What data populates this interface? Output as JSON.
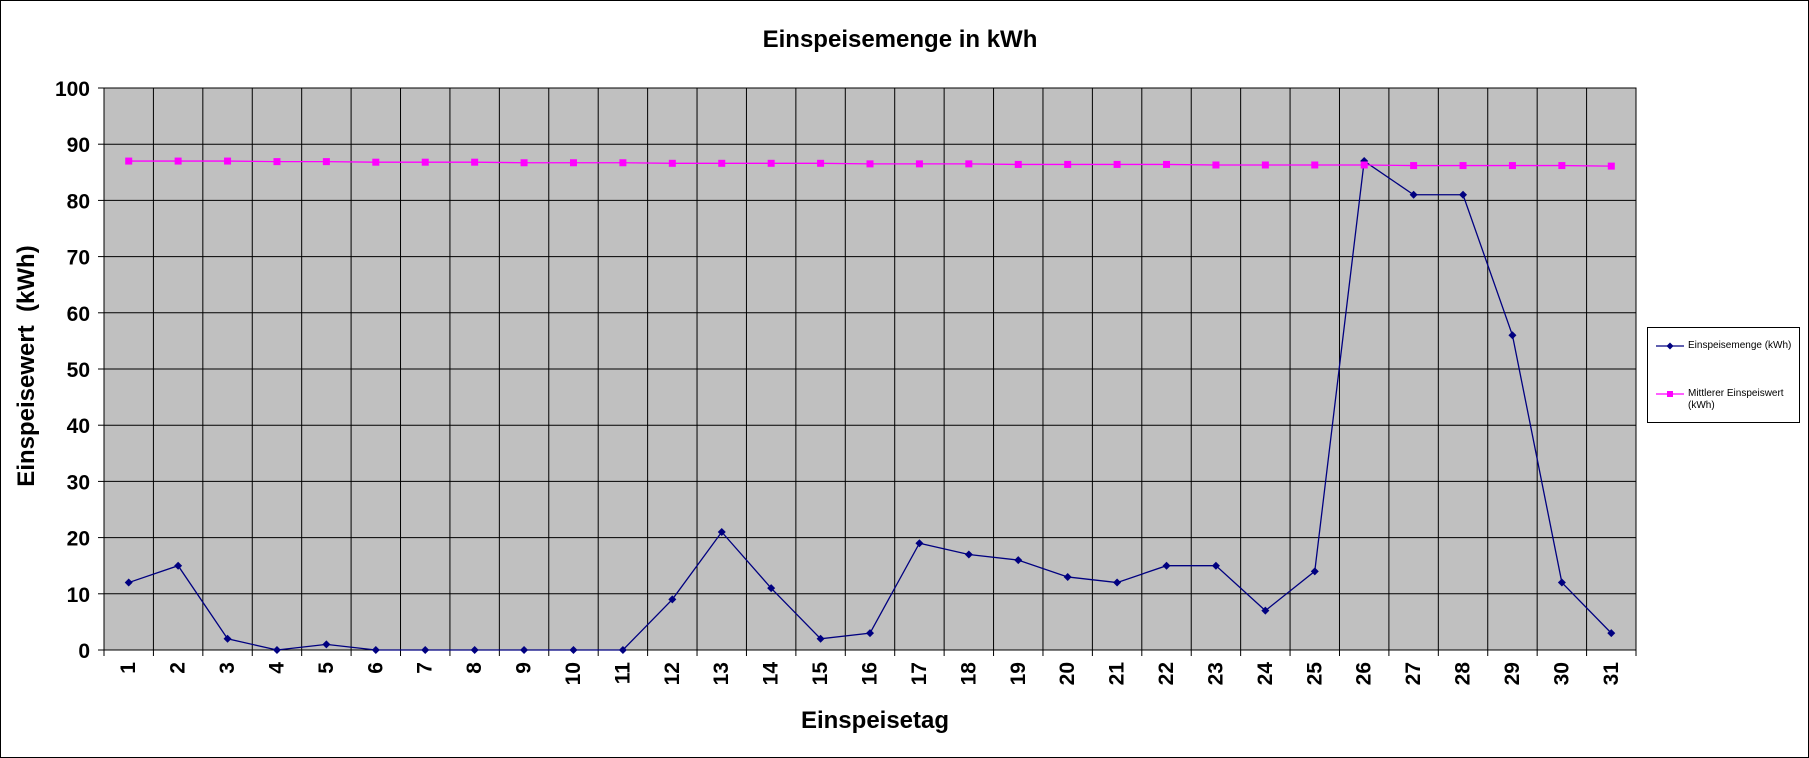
{
  "chart_data": {
    "type": "line",
    "title": "Einspeisemenge in kWh",
    "xlabel": "Einspeisetag",
    "ylabel": "Einspeisewert  (kWh)",
    "categories": [
      "1",
      "2",
      "3",
      "4",
      "5",
      "6",
      "7",
      "8",
      "9",
      "10",
      "11",
      "12",
      "13",
      "14",
      "15",
      "16",
      "17",
      "18",
      "19",
      "20",
      "21",
      "22",
      "23",
      "24",
      "25",
      "26",
      "27",
      "28",
      "29",
      "30",
      "31"
    ],
    "ylim": [
      0,
      100
    ],
    "yticks": [
      "0",
      "10",
      "20",
      "30",
      "40",
      "50",
      "60",
      "70",
      "80",
      "90",
      "100"
    ],
    "grid": true,
    "legend_position": "right",
    "series": [
      {
        "name": "Einspeisemenge (kWh)",
        "color": "#000080",
        "marker": "diamond",
        "values": [
          12,
          15,
          2,
          0,
          1,
          0,
          0,
          0,
          0,
          0,
          0,
          9,
          21,
          11,
          2,
          3,
          19,
          17,
          16,
          13,
          12,
          15,
          15,
          7,
          14,
          87,
          81,
          81,
          56,
          12,
          3
        ]
      },
      {
        "name": "Mittlerer Einspeiswert (kWh)",
        "color": "#ff00ff",
        "marker": "square",
        "values": [
          87,
          87,
          87,
          86.9,
          86.9,
          86.8,
          86.8,
          86.8,
          86.7,
          86.7,
          86.7,
          86.6,
          86.6,
          86.6,
          86.6,
          86.5,
          86.5,
          86.5,
          86.4,
          86.4,
          86.4,
          86.4,
          86.3,
          86.3,
          86.3,
          86.3,
          86.2,
          86.2,
          86.2,
          86.2,
          86.1
        ]
      }
    ],
    "colors": {
      "plot_background": "#c0c0c0",
      "gridline": "#000000"
    }
  }
}
